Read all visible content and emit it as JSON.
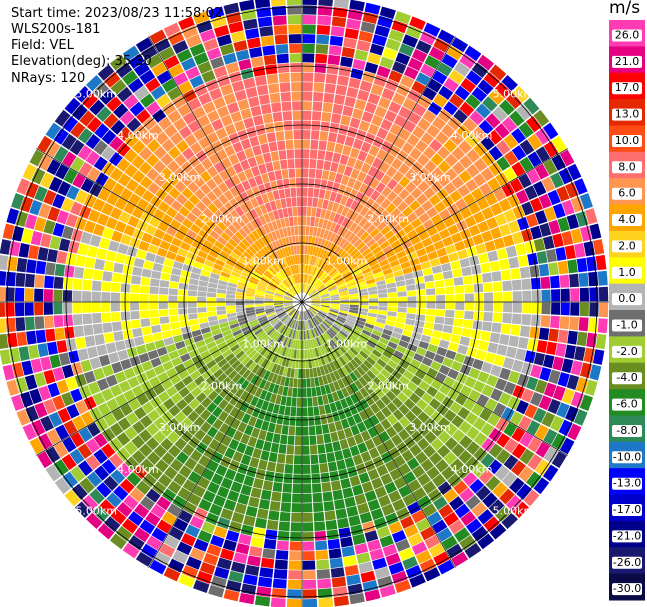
{
  "header": {
    "start_time": "Start time: 2023/08/23 11:58:02",
    "instrument": "WLS200s-181",
    "field": "Field: VEL",
    "elevation": "Elevation(deg): 35.30",
    "nrays": "NRays: 120"
  },
  "colorbar": {
    "unit": "m/s",
    "ticks": [
      "26.0",
      "21.0",
      "17.0",
      "13.0",
      "10.0",
      "8.0",
      "6.0",
      "4.0",
      "2.0",
      "1.0",
      "0.0",
      "-1.0",
      "-2.0",
      "-4.0",
      "-6.0",
      "-8.0",
      "-10.0",
      "-13.0",
      "-17.0",
      "-21.0",
      "-26.0",
      "-30.0"
    ],
    "colors": [
      "#ff3cb4",
      "#e60082",
      "#ff0000",
      "#e62800",
      "#ff4b14",
      "#ff6e6e",
      "#ff9650",
      "#ffa500",
      "#ffd21e",
      "#ffff00",
      "#b4b4b4",
      "#6e6e6e",
      "#a0cd32",
      "#6b8e23",
      "#228b22",
      "#2e8b57",
      "#1e78c8",
      "#0000ff",
      "#0000cd",
      "#00008b",
      "#191970",
      "#0a0a46"
    ]
  },
  "chart_data": {
    "type": "ppi",
    "field": "VEL",
    "units": "m/s",
    "nrays": 120,
    "elevation_deg": 35.3,
    "range_ring_labels": [
      "1.00km",
      "2.00km",
      "3.00km",
      "4.00km",
      "5.00km"
    ],
    "velocity_range": [
      -30.0,
      26.0
    ],
    "valid_range_km": 4.0,
    "pattern": {
      "north_sector": "positive 3 to 6 m/s (orange)",
      "south_sector": "negative -4 to -8 m/s (green)",
      "east_west_axis": "near zero (grey)",
      "beyond_4km": "noise"
    }
  }
}
